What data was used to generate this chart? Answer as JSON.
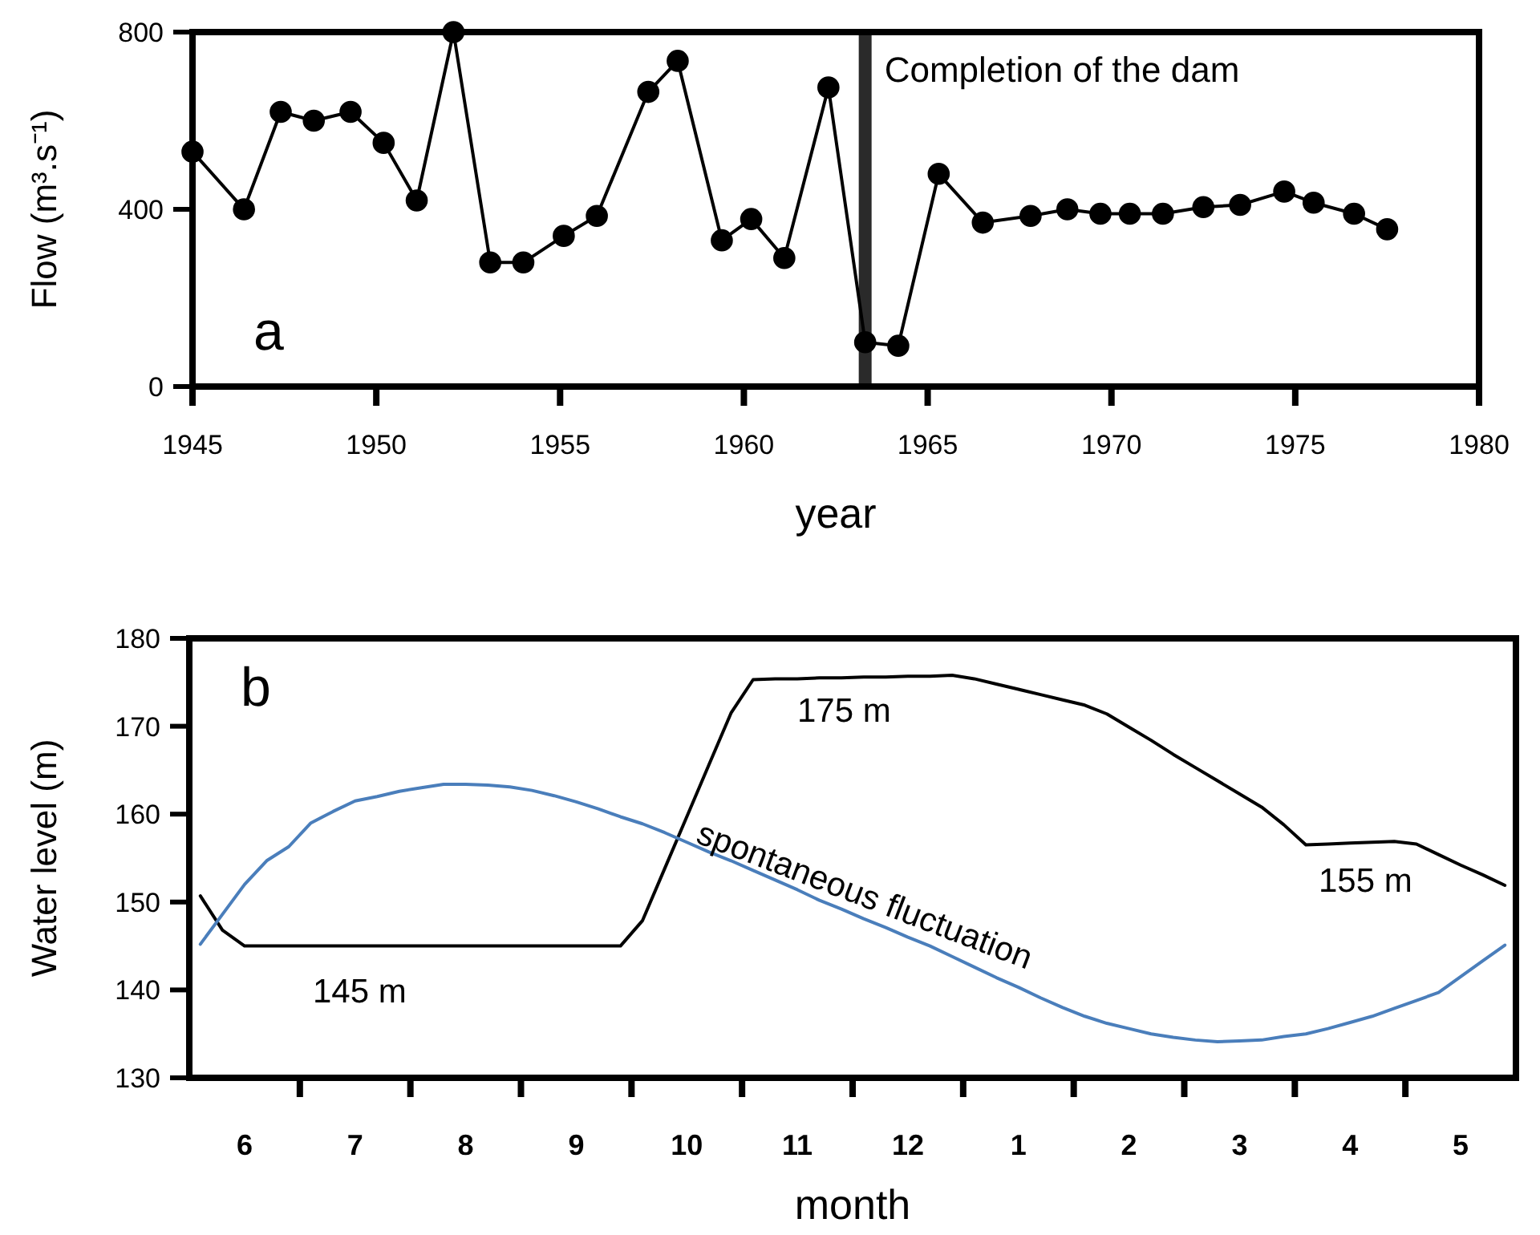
{
  "chart_data": [
    {
      "type": "line",
      "xlabel": "year",
      "ylabel": "Flow (m³.s⁻¹)",
      "xlim": [
        1945,
        1980
      ],
      "xticks": [
        1945,
        1950,
        1955,
        1960,
        1965,
        1970,
        1975,
        1980
      ],
      "ylim": [
        0,
        800
      ],
      "yticks": [
        0,
        400,
        800
      ],
      "marker": "circle",
      "grid": false,
      "x": [
        1945.0,
        1946.4,
        1947.4,
        1948.3,
        1949.3,
        1950.2,
        1951.1,
        1952.1,
        1953.1,
        1954.0,
        1955.1,
        1956.0,
        1957.4,
        1958.2,
        1959.4,
        1960.2,
        1961.1,
        1962.3,
        1963.3,
        1964.2,
        1965.3,
        1966.5,
        1967.8,
        1968.8,
        1969.7,
        1970.5,
        1971.4,
        1972.5,
        1973.5,
        1974.7,
        1975.5,
        1976.6,
        1977.5
      ],
      "series": [
        {
          "color": "#000000",
          "values": [
            530,
            400,
            620,
            600,
            620,
            550,
            420,
            800,
            280,
            280,
            340,
            385,
            665,
            735,
            330,
            378,
            290,
            675,
            100,
            92,
            480,
            370,
            385,
            400,
            390,
            390,
            390,
            405,
            410,
            440,
            415,
            390,
            355
          ]
        }
      ],
      "ref_lines": [
        {
          "axis": "x",
          "value": 1963.3,
          "label": "Completion of the dam",
          "color": "#2a2a2a"
        }
      ],
      "annotations": [
        "a"
      ]
    },
    {
      "type": "line",
      "xlabel": "month",
      "ylabel": "Water level  (m)",
      "ylim": [
        130,
        180
      ],
      "yticks": [
        130,
        140,
        150,
        160,
        170,
        180
      ],
      "grid": false,
      "categories": [
        null,
        null,
        "6",
        null,
        null,
        null,
        null,
        "7",
        null,
        null,
        null,
        null,
        "8",
        null,
        null,
        null,
        null,
        "9",
        null,
        null,
        null,
        null,
        "10",
        null,
        null,
        null,
        null,
        "11",
        null,
        null,
        null,
        null,
        "12",
        null,
        null,
        null,
        null,
        "1",
        null,
        null,
        null,
        null,
        "2",
        null,
        null,
        null,
        null,
        "3",
        null,
        null,
        null,
        null,
        "4",
        null,
        null,
        null,
        null,
        "5",
        null,
        null
      ],
      "series": [
        {
          "color": "#000000",
          "values": [
            150.7,
            146.8,
            145,
            145,
            145,
            145,
            145,
            145,
            145,
            145,
            145,
            145,
            145,
            145,
            145,
            145,
            145,
            145,
            145,
            145,
            147.9,
            153.8,
            159.7,
            165.6,
            171.5,
            175.3,
            175.4,
            175.4,
            175.5,
            175.5,
            175.6,
            175.6,
            175.7,
            175.7,
            175.8,
            175.4,
            174.8,
            174.2,
            173.6,
            173.0,
            172.4,
            171.4,
            169.9,
            168.4,
            166.8,
            165.3,
            163.8,
            162.3,
            160.8,
            158.8,
            156.5,
            156.6,
            156.7,
            156.8,
            156.9,
            156.6,
            155.4,
            154.2,
            153.1,
            151.9
          ]
        },
        {
          "color": "#4a7ebb",
          "values": [
            145.2,
            148.6,
            152.0,
            154.7,
            156.3,
            159.0,
            160.3,
            161.5,
            162.0,
            162.6,
            163.0,
            163.4,
            163.4,
            163.3,
            163.1,
            162.7,
            162.1,
            161.4,
            160.6,
            159.7,
            158.9,
            157.9,
            156.8,
            155.7,
            154.7,
            153.6,
            152.5,
            151.4,
            150.2,
            149.2,
            148.1,
            147.1,
            146.0,
            145.0,
            143.8,
            142.6,
            141.4,
            140.3,
            139.1,
            138.0,
            137.0,
            136.2,
            135.6,
            135.0,
            134.6,
            134.3,
            134.1,
            134.2,
            134.3,
            134.7,
            135.0,
            135.6,
            136.3,
            137.0,
            137.9,
            138.8,
            139.7,
            141.5,
            143.3,
            145.1
          ]
        }
      ],
      "annotations": [
        "b",
        "145 m",
        "175 m",
        "155 m",
        "spontaneous fluctuation"
      ]
    }
  ]
}
